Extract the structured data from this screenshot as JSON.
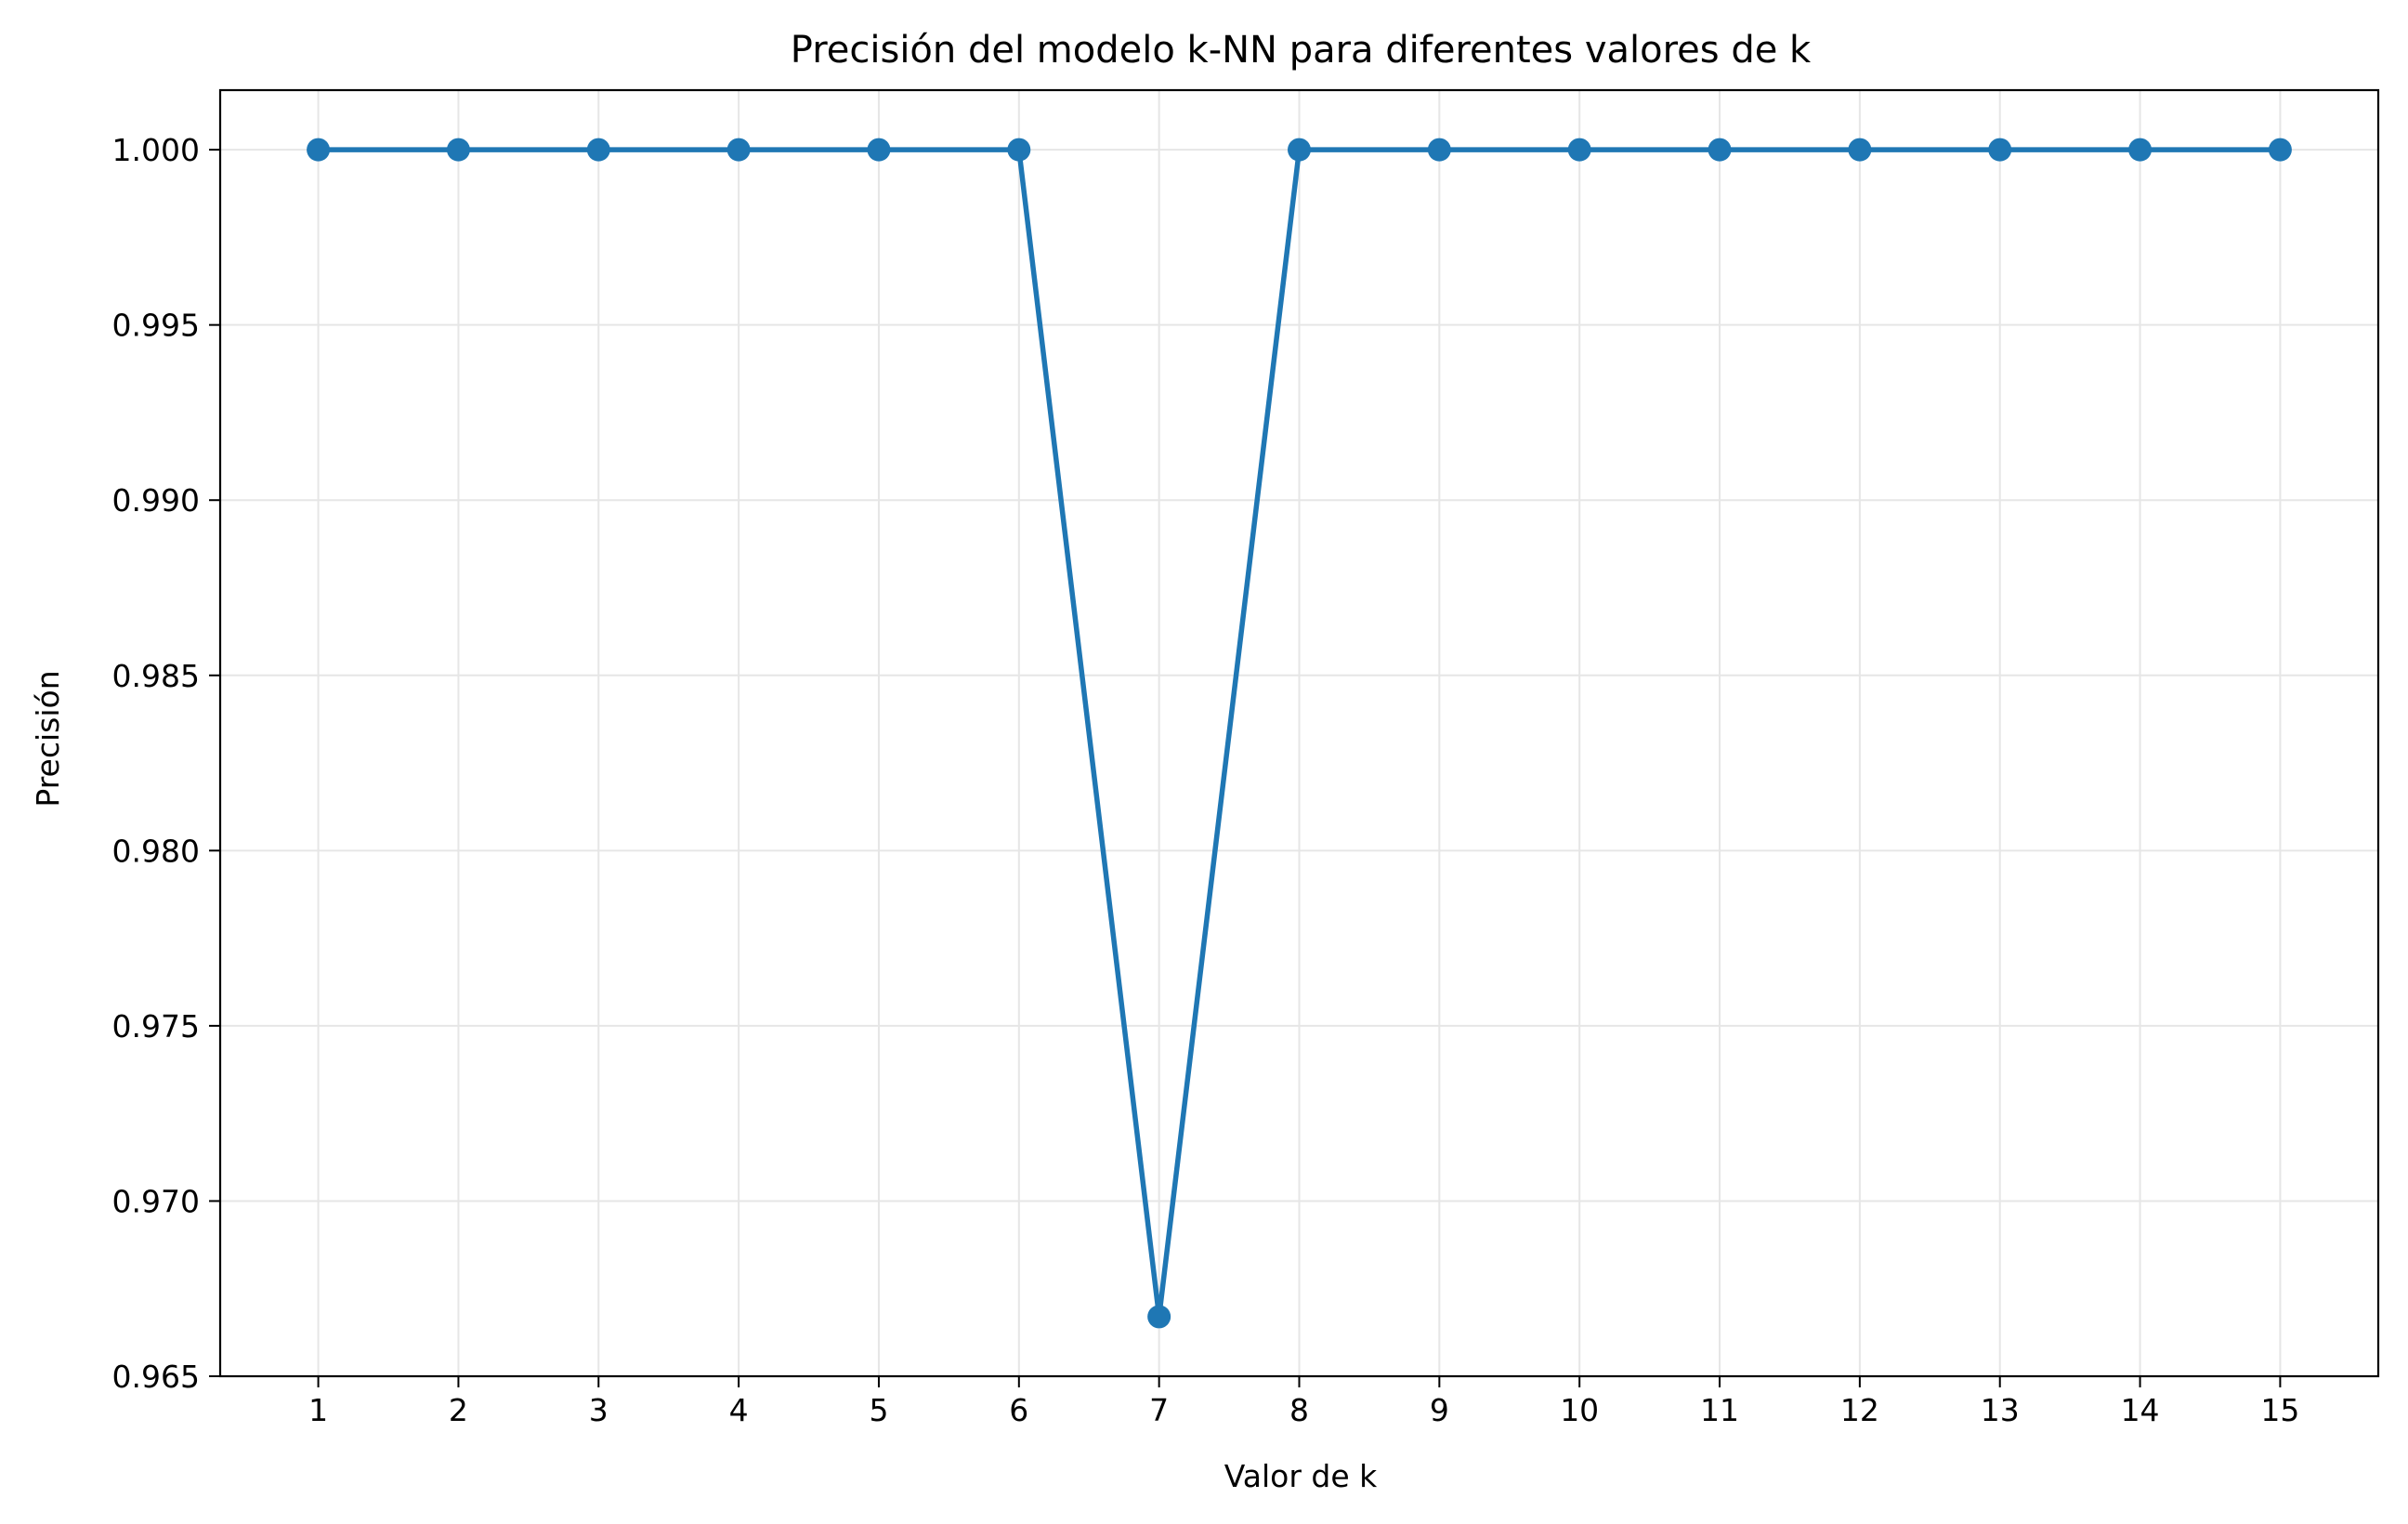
{
  "chart_data": {
    "type": "line",
    "title": "Precisión del modelo k-NN para diferentes valores de k",
    "xlabel": "Valor de k",
    "ylabel": "Precisión",
    "x": [
      1,
      2,
      3,
      4,
      5,
      6,
      7,
      8,
      9,
      10,
      11,
      12,
      13,
      14,
      15
    ],
    "x_tick_labels": [
      "1",
      "2",
      "3",
      "4",
      "5",
      "6",
      "7",
      "8",
      "9",
      "10",
      "11",
      "12",
      "13",
      "14",
      "15"
    ],
    "series": [
      {
        "values": [
          1.0,
          1.0,
          1.0,
          1.0,
          1.0,
          1.0,
          0.9667,
          1.0,
          1.0,
          1.0,
          1.0,
          1.0,
          1.0,
          1.0,
          1.0
        ],
        "color": "#1f77b4",
        "marker": "circle"
      }
    ],
    "xlim": [
      0.3,
      15.7
    ],
    "ylim": [
      0.965,
      1.0017
    ],
    "y_ticks": [
      0.965,
      0.97,
      0.975,
      0.98,
      0.985,
      0.99,
      0.995,
      1.0
    ],
    "y_tick_labels": [
      "0.965",
      "0.970",
      "0.975",
      "0.980",
      "0.985",
      "0.990",
      "0.995",
      "1.000"
    ],
    "grid": true,
    "grid_color": "#e6e6e6",
    "axis_color": "#000000"
  }
}
